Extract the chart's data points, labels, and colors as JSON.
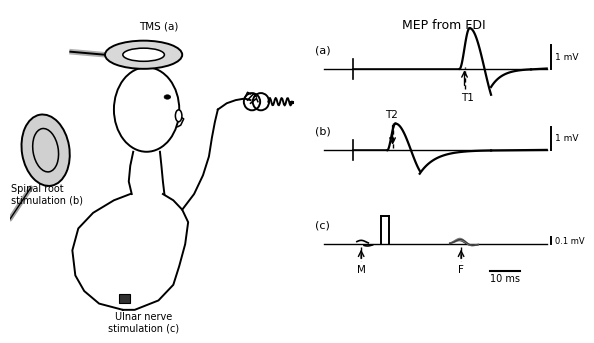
{
  "title": "MEP from FDI",
  "background_color": "#ffffff",
  "left_panel": {
    "tms_label": "TMS (a)",
    "spinal_label": "Spinal root\nstimulation (b)",
    "ulnar_label": "Ulnar nerve\nstimulation (c)"
  },
  "traces": {
    "a": {
      "label": "(a)",
      "t1_label": "T1",
      "scale_label": "1 mV"
    },
    "b": {
      "label": "(b)",
      "t2_label": "T2",
      "scale_label": "1 mV"
    },
    "c": {
      "label": "(c)",
      "m_label": "M",
      "f_label": "F",
      "scale_label": "0.1 mV",
      "timescale_label": "10 ms"
    }
  },
  "arrow_color": "#000000",
  "line_color": "#000000",
  "text_color": "#000000"
}
